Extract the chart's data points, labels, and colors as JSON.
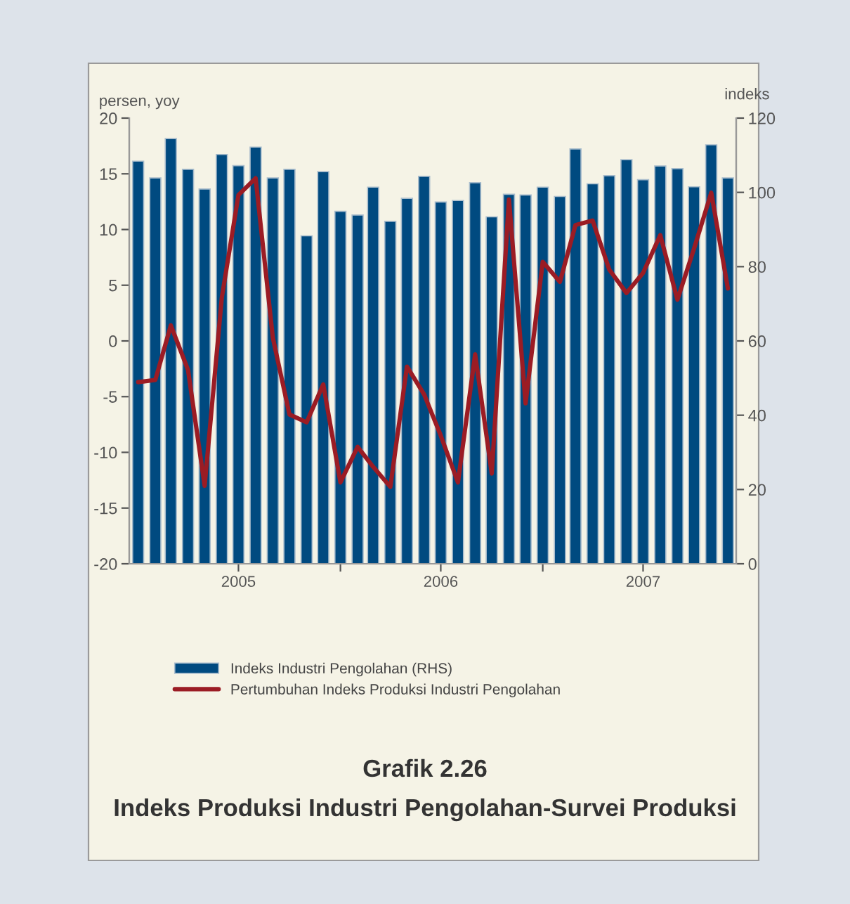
{
  "chart_data": {
    "type": "bar",
    "title": "Grafik 2.26",
    "subtitle": "Indeks Produksi Industri Pengolahan-Survei Produksi",
    "ylabel": "persen, yoy",
    "y2label": "indeks",
    "x": [
      "2005-01",
      "2005-02",
      "2005-03",
      "2005-04",
      "2005-05",
      "2005-06",
      "2005-07",
      "2005-08",
      "2005-09",
      "2005-10",
      "2005-11",
      "2005-12",
      "2006-01",
      "2006-02",
      "2006-03",
      "2006-04",
      "2006-05",
      "2006-06",
      "2006-07",
      "2006-08",
      "2006-09",
      "2006-10",
      "2006-11",
      "2006-12",
      "2007-01",
      "2007-02",
      "2007-03",
      "2007-04",
      "2007-05",
      "2007-06",
      "2007-07",
      "2007-08",
      "2007-09",
      "2007-10",
      "2007-11",
      "2007-12"
    ],
    "series": [
      {
        "name": "Indeks Industri Pengolahan (RHS)",
        "axis": "y2",
        "color": "#004a80",
        "values": [
          108.4,
          103.9,
          114.5,
          106.2,
          100.9,
          110.2,
          107.2,
          112.2,
          103.9,
          106.2,
          88.3,
          105.6,
          94.9,
          93.9,
          101.4,
          92.2,
          98.4,
          104.3,
          97.4,
          97.8,
          102.6,
          93.4,
          99.5,
          99.3,
          101.4,
          98.9,
          111.7,
          102.3,
          104.5,
          108.8,
          103.4,
          107.1,
          106.4,
          101.5,
          112.8,
          103.9
        ]
      },
      {
        "name": "Pertumbuhan Indeks Produksi Industri Pengolahan",
        "type": "line",
        "color": "#9b1c24",
        "values": [
          -3.7,
          -3.5,
          1.4,
          -2.6,
          -13.0,
          3.9,
          13.1,
          14.6,
          0.3,
          -6.6,
          -7.3,
          -3.9,
          -12.7,
          -9.5,
          -11.3,
          -13.1,
          -2.3,
          -4.8,
          -8.5,
          -12.7,
          -1.2,
          -11.9,
          12.7,
          -5.6,
          7.1,
          5.3,
          10.4,
          10.8,
          6.4,
          4.3,
          6.1,
          9.5,
          3.7,
          8.3,
          13.3,
          4.7
        ]
      }
    ],
    "xlim": [
      "2004-12-16",
      "2007-12-16"
    ],
    "xticks": [
      {
        "value": "2005-07-01",
        "label": "2005"
      },
      {
        "value": "2006-01-01",
        "label": null
      },
      {
        "value": "2006-07-01",
        "label": "2006"
      },
      {
        "value": "2007-01-01",
        "label": null
      },
      {
        "value": "2007-07-01",
        "label": "2007"
      }
    ],
    "ylim": [
      -20,
      20
    ],
    "yticks": [
      -20,
      -15,
      -10,
      -5,
      0,
      5,
      10,
      15,
      20
    ],
    "y2lim": [
      0,
      120
    ],
    "y2ticks": [
      0,
      20,
      40,
      60,
      80,
      100,
      120
    ],
    "grid": false,
    "legend": "bottom",
    "line_style": "solid",
    "marker": "none"
  }
}
